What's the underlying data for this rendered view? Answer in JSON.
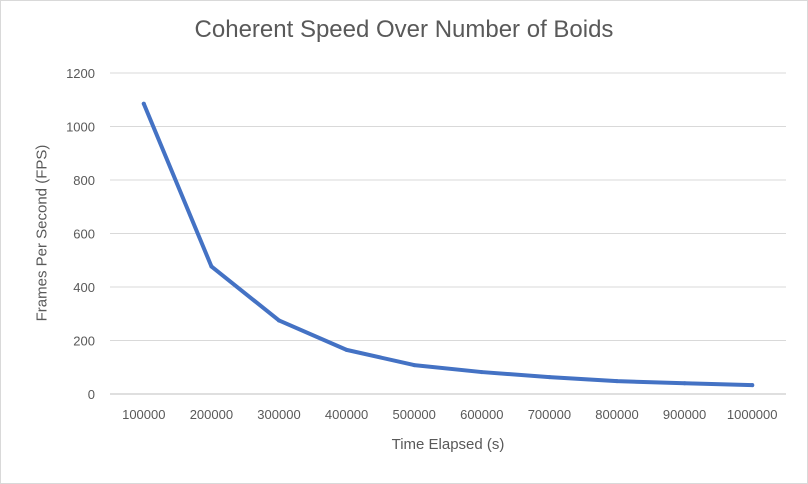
{
  "chart_data": {
    "type": "line",
    "title": "Coherent Speed Over Number of Boids",
    "xlabel": "Time Elapsed (s)",
    "ylabel": "Frames Per Second (FPS)",
    "categories": [
      "100000",
      "200000",
      "300000",
      "400000",
      "500000",
      "600000",
      "700000",
      "800000",
      "900000",
      "1000000"
    ],
    "yticks": [
      "0",
      "200",
      "400",
      "600",
      "800",
      "1000",
      "1200"
    ],
    "ylim": [
      0,
      1200
    ],
    "grid": true,
    "series": [
      {
        "values": [
          1085,
          477,
          275,
          165,
          108,
          82,
          63,
          48,
          40,
          33
        ],
        "color": "#4472c4"
      }
    ]
  }
}
